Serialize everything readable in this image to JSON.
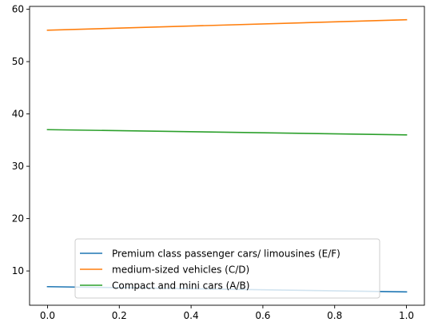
{
  "chart_data": {
    "type": "line",
    "title": "",
    "xlabel": "",
    "ylabel": "",
    "x": [
      0.0,
      1.0
    ],
    "xlim": [
      -0.05,
      1.05
    ],
    "ylim": [
      3.45,
      60.55
    ],
    "x_ticks": [
      0.0,
      0.2,
      0.4,
      0.6,
      0.8,
      1.0
    ],
    "x_tick_labels": [
      "0.0",
      "0.2",
      "0.4",
      "0.6",
      "0.8",
      "1.0"
    ],
    "y_ticks": [
      10,
      20,
      30,
      40,
      50,
      60
    ],
    "y_tick_labels": [
      "10",
      "20",
      "30",
      "40",
      "50",
      "60"
    ],
    "grid": false,
    "legend_position": "lower-center",
    "series": [
      {
        "name": "Premium class passenger cars/ limousines (E/F)",
        "values": [
          7,
          6
        ],
        "color": "#1f77b4"
      },
      {
        "name": "medium-sized vehicles (C/D)",
        "values": [
          56,
          58
        ],
        "color": "#ff7f0e"
      },
      {
        "name": "Compact and mini cars (A/B)",
        "values": [
          37,
          36
        ],
        "color": "#2ca02c"
      }
    ]
  }
}
